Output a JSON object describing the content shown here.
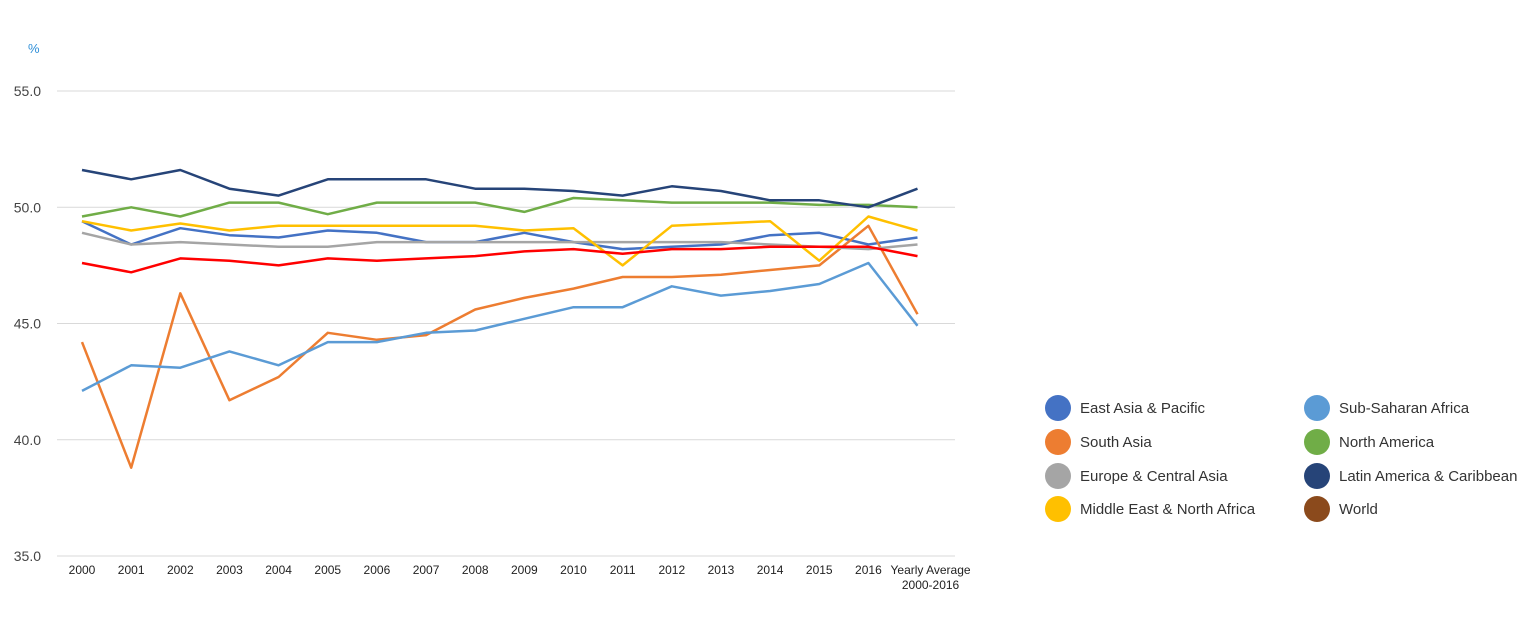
{
  "chart_data": {
    "type": "line",
    "unit_label": "%",
    "categories": [
      "2000",
      "2001",
      "2002",
      "2003",
      "2004",
      "2005",
      "2006",
      "2007",
      "2008",
      "2009",
      "2010",
      "2011",
      "2012",
      "2013",
      "2014",
      "2015",
      "2016",
      [
        "Yearly Average",
        "2000-2016"
      ]
    ],
    "ylim": [
      35.0,
      55.0
    ],
    "yticks": [
      "35.0",
      "40.0",
      "45.0",
      "50.0",
      "55.0"
    ],
    "grid": true,
    "legend_position": "right",
    "series": [
      {
        "name": "East Asia & Pacific",
        "color": "#4472c4",
        "values": [
          49.4,
          48.4,
          49.1,
          48.8,
          48.7,
          49.0,
          48.9,
          48.5,
          48.5,
          48.9,
          48.5,
          48.2,
          48.3,
          48.4,
          48.8,
          48.9,
          48.4,
          48.7
        ]
      },
      {
        "name": "South Asia",
        "color": "#ed7d31",
        "values": [
          44.2,
          38.8,
          46.3,
          41.7,
          42.7,
          44.6,
          44.3,
          44.5,
          45.6,
          46.1,
          46.5,
          47.0,
          47.0,
          47.1,
          47.3,
          47.5,
          49.2,
          45.4
        ]
      },
      {
        "name": "Europe & Central Asia",
        "color": "#a5a5a5",
        "values": [
          48.9,
          48.4,
          48.5,
          48.4,
          48.3,
          48.3,
          48.5,
          48.5,
          48.5,
          48.5,
          48.5,
          48.5,
          48.5,
          48.5,
          48.4,
          48.3,
          48.2,
          48.4
        ]
      },
      {
        "name": "Middle East & North Africa",
        "color": "#ffc000",
        "values": [
          49.4,
          49.0,
          49.3,
          49.0,
          49.2,
          49.2,
          49.2,
          49.2,
          49.2,
          49.0,
          49.1,
          47.5,
          49.2,
          49.3,
          49.4,
          47.7,
          49.6,
          49.0
        ]
      },
      {
        "name": "Sub-Saharan Africa",
        "color": "#5b9bd5",
        "values": [
          42.1,
          43.2,
          43.1,
          43.8,
          43.2,
          44.2,
          44.2,
          44.6,
          44.7,
          45.2,
          45.7,
          45.7,
          46.6,
          46.2,
          46.4,
          46.7,
          47.6,
          44.9
        ]
      },
      {
        "name": "North America",
        "color": "#70ad47",
        "values": [
          49.6,
          50.0,
          49.6,
          50.2,
          50.2,
          49.7,
          50.2,
          50.2,
          50.2,
          49.8,
          50.4,
          50.3,
          50.2,
          50.2,
          50.2,
          50.1,
          50.1,
          50.0
        ]
      },
      {
        "name": "Latin America & Caribbean",
        "color": "#264478",
        "values": [
          51.6,
          51.2,
          51.6,
          50.8,
          50.5,
          51.2,
          51.2,
          51.2,
          50.8,
          50.8,
          50.7,
          50.5,
          50.9,
          50.7,
          50.3,
          50.3,
          50.0,
          50.8
        ]
      },
      {
        "name": "World",
        "color": "#ff0000",
        "legend_color": "#8b4a1c",
        "values": [
          47.6,
          47.2,
          47.8,
          47.7,
          47.5,
          47.8,
          47.7,
          47.8,
          47.9,
          48.1,
          48.2,
          48.0,
          48.2,
          48.2,
          48.3,
          48.3,
          48.3,
          47.9
        ]
      }
    ]
  },
  "legend": {
    "items": [
      {
        "label": "East Asia & Pacific",
        "color": "#4472c4"
      },
      {
        "label": "South Asia",
        "color": "#ed7d31"
      },
      {
        "label": "Europe & Central Asia",
        "color": "#a5a5a5"
      },
      {
        "label": "Middle East & North Africa",
        "color": "#ffc000"
      },
      {
        "label": "Sub-Saharan Africa",
        "color": "#5b9bd5"
      },
      {
        "label": "North America",
        "color": "#70ad47"
      },
      {
        "label": "Latin America & Caribbean",
        "color": "#264478"
      },
      {
        "label": "World",
        "color": "#8b4a1c"
      }
    ]
  }
}
